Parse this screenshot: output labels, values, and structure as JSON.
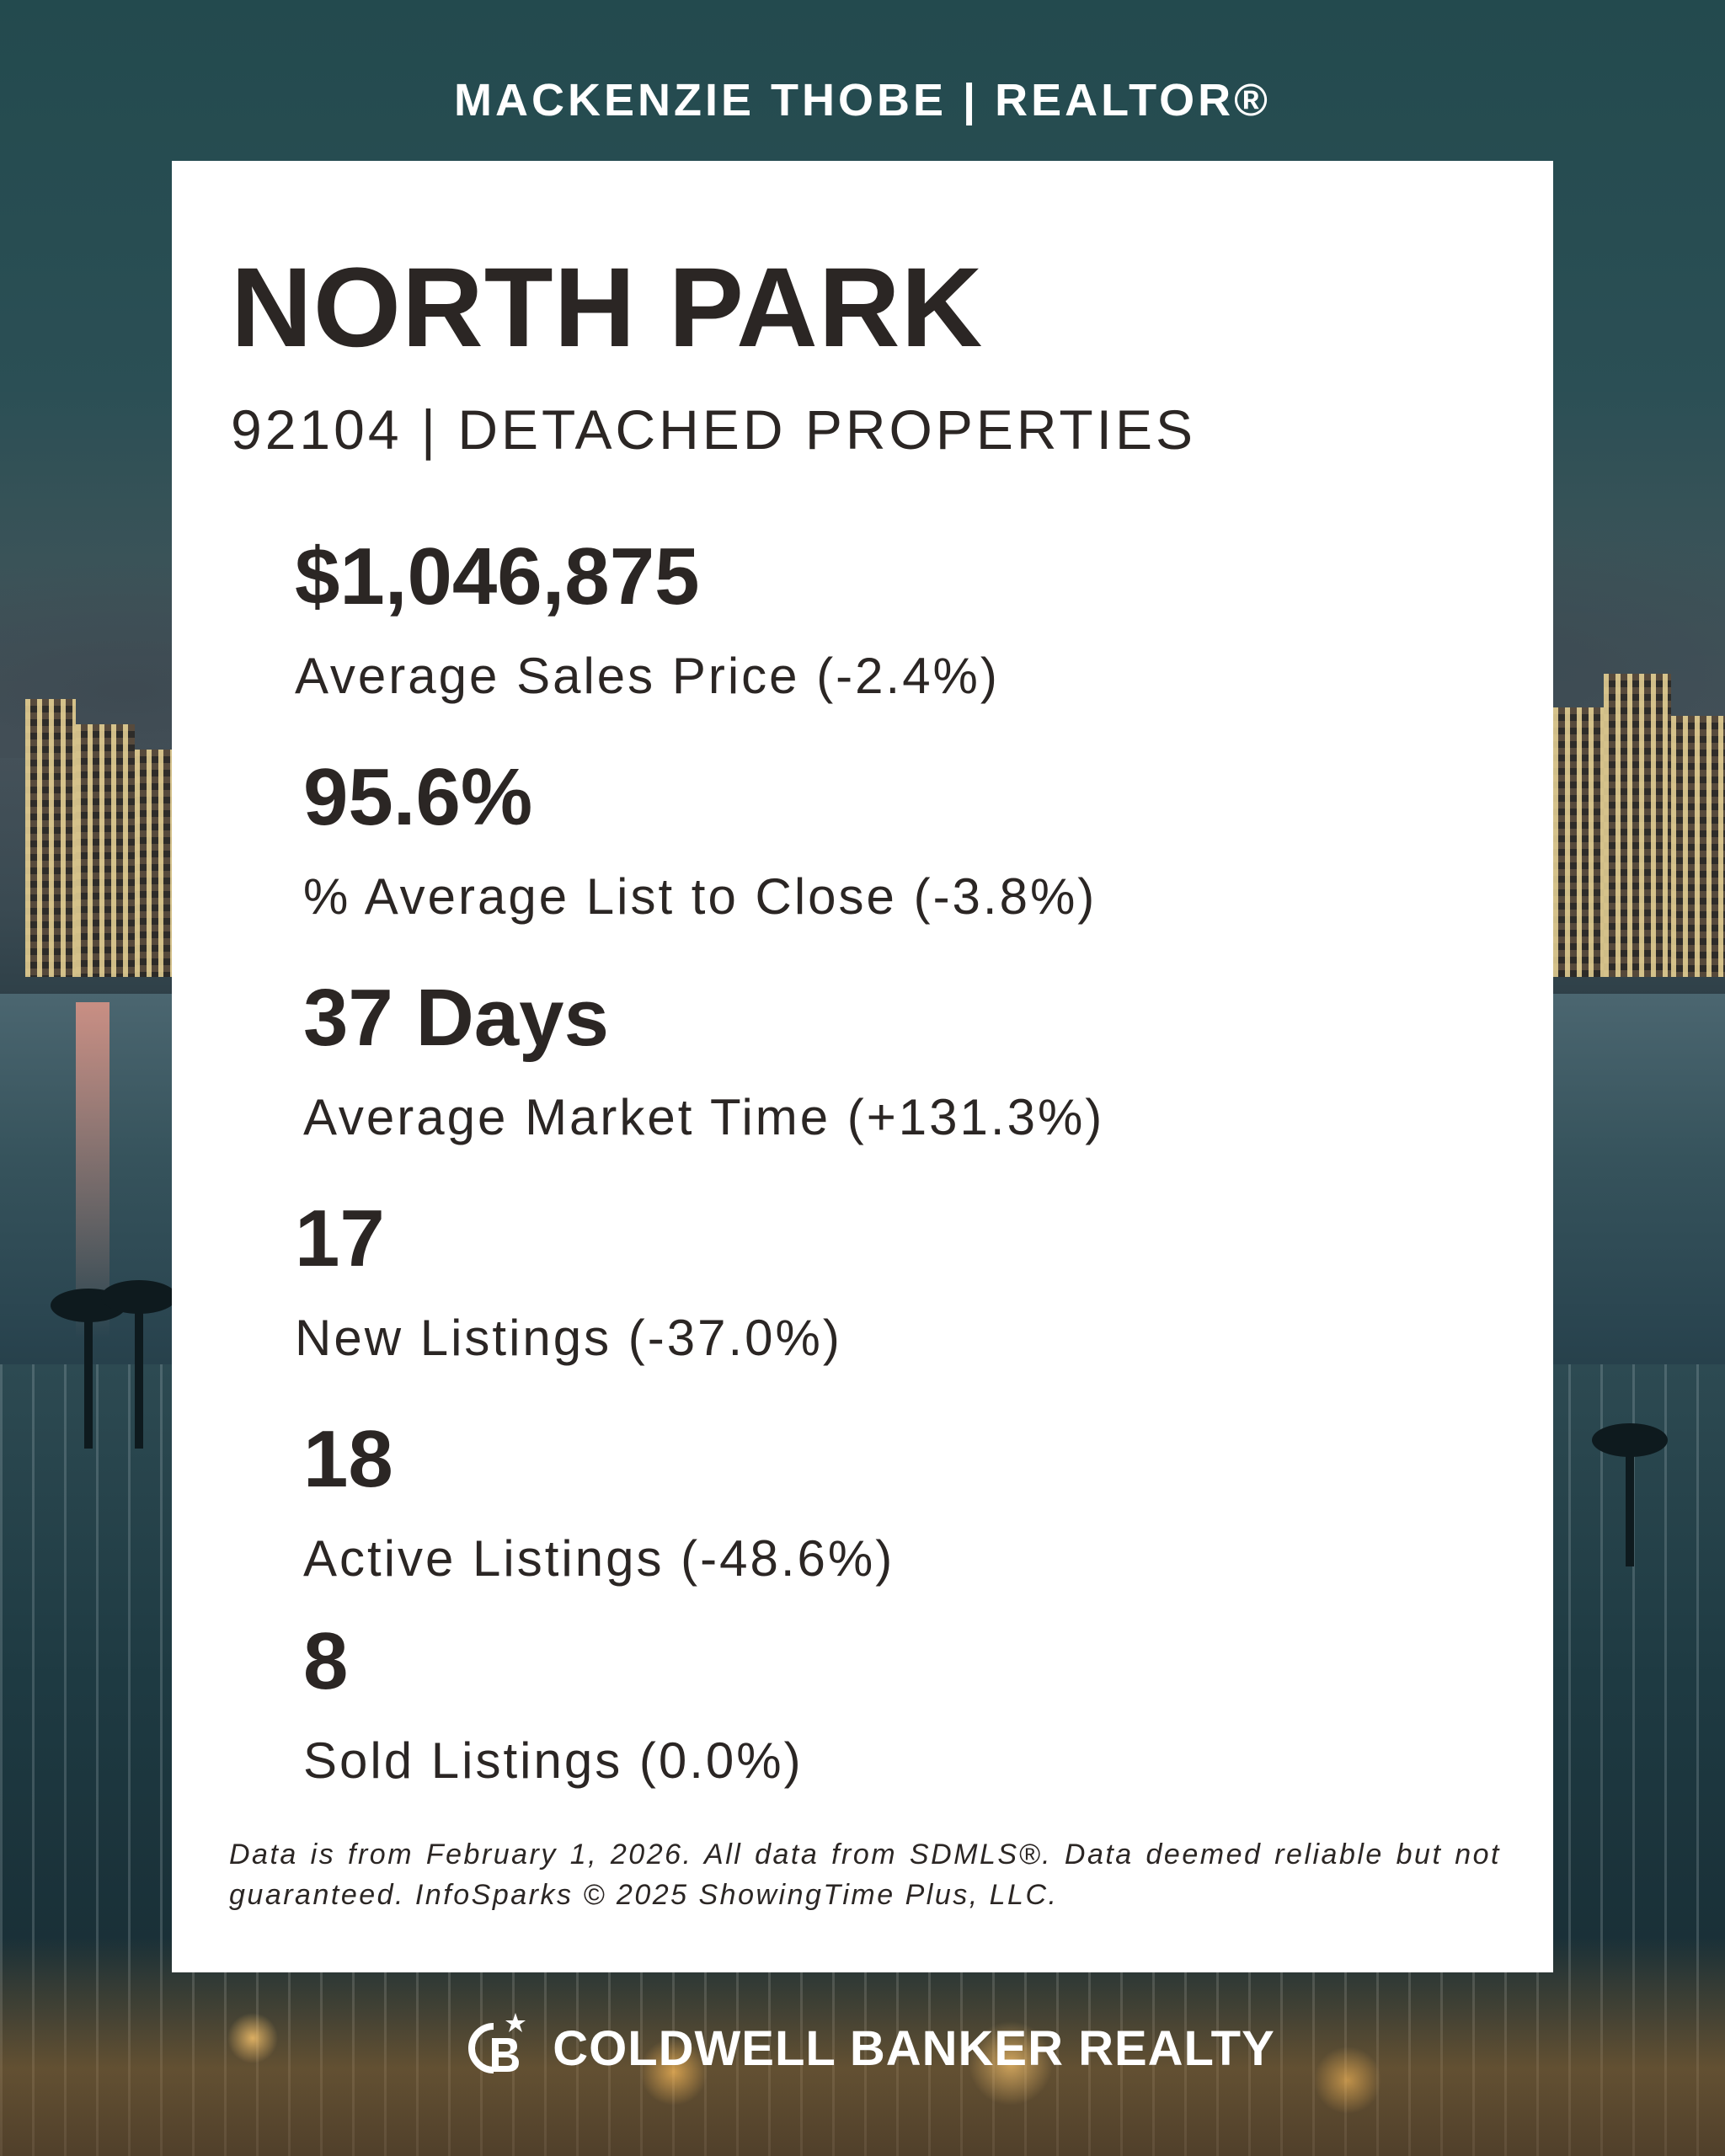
{
  "header": {
    "agent": "MACKENZIE THOBE | REALTOR®"
  },
  "card": {
    "title": "NORTH PARK",
    "subtitle": "92104 | DETACHED PROPERTIES",
    "stats": [
      {
        "value": "$1,046,875",
        "label": "Average Sales Price (-2.4%)"
      },
      {
        "value": "95.6%",
        "label": "% Average List to Close (-3.8%)"
      },
      {
        "value": "37 Days",
        "label": "Average Market Time (+131.3%)"
      },
      {
        "value": "17",
        "label": "New Listings (-37.0%)"
      },
      {
        "value": "18",
        "label": "Active Listings (-48.6%)"
      },
      {
        "value": "8",
        "label": "Sold Listings (0.0%)"
      }
    ],
    "disclaimer": "Data is from February 1, 2026. All data from SDMLS®. Data deemed reliable but not guaranteed. InfoSparks © 2025 ShowingTime Plus, LLC."
  },
  "footer": {
    "brand": "COLDWELL BANKER REALTY",
    "brand_icon": "coldwell-banker-logo"
  },
  "colors": {
    "text": "#2b2624",
    "card": "#ffffff",
    "background": "#1f3a3e"
  }
}
